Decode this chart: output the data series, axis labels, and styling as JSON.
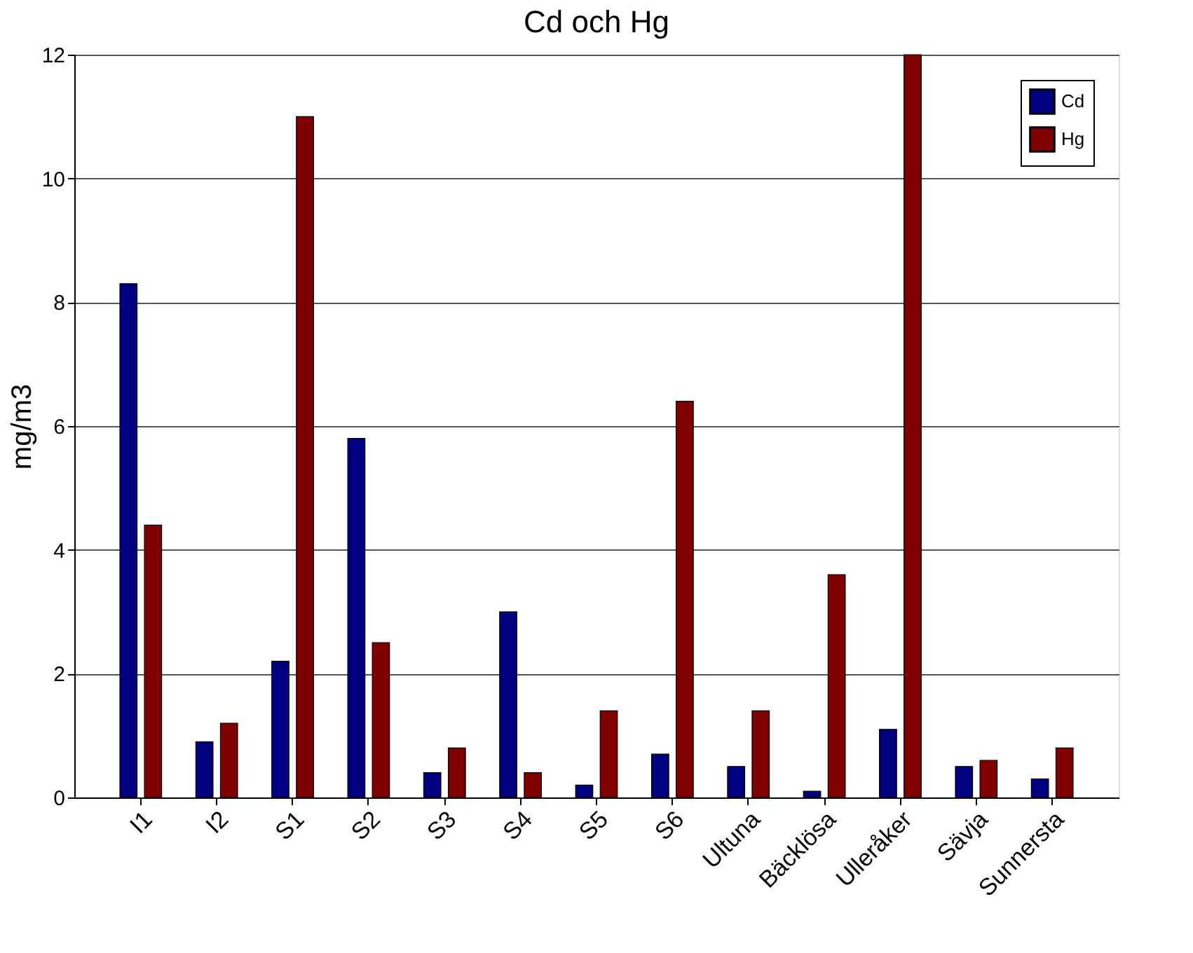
{
  "chart_data": {
    "type": "bar",
    "title": "Cd och Hg",
    "ylabel": "mg/m3",
    "categories": [
      "I1",
      "I2",
      "S1",
      "S2",
      "S3",
      "S4",
      "S5",
      "S6",
      "Ultuna",
      "Bäcklösa",
      "Ulleråker",
      "Sävja",
      "Sunnersta"
    ],
    "series": [
      {
        "name": "Cd",
        "color": "#000080",
        "values": [
          8.3,
          0.9,
          2.2,
          5.8,
          0.4,
          3.0,
          0.2,
          0.7,
          0.5,
          0.1,
          1.1,
          0.5,
          0.3
        ]
      },
      {
        "name": "Hg",
        "color": "#800000",
        "values": [
          4.4,
          1.2,
          11.0,
          2.5,
          0.8,
          0.4,
          1.4,
          6.4,
          1.4,
          3.6,
          12.0,
          0.6,
          0.8
        ]
      }
    ],
    "ylim": [
      0,
      12
    ],
    "yticks": [
      0,
      2,
      4,
      6,
      8,
      10,
      12
    ],
    "grid": "y",
    "legend": "top right"
  }
}
